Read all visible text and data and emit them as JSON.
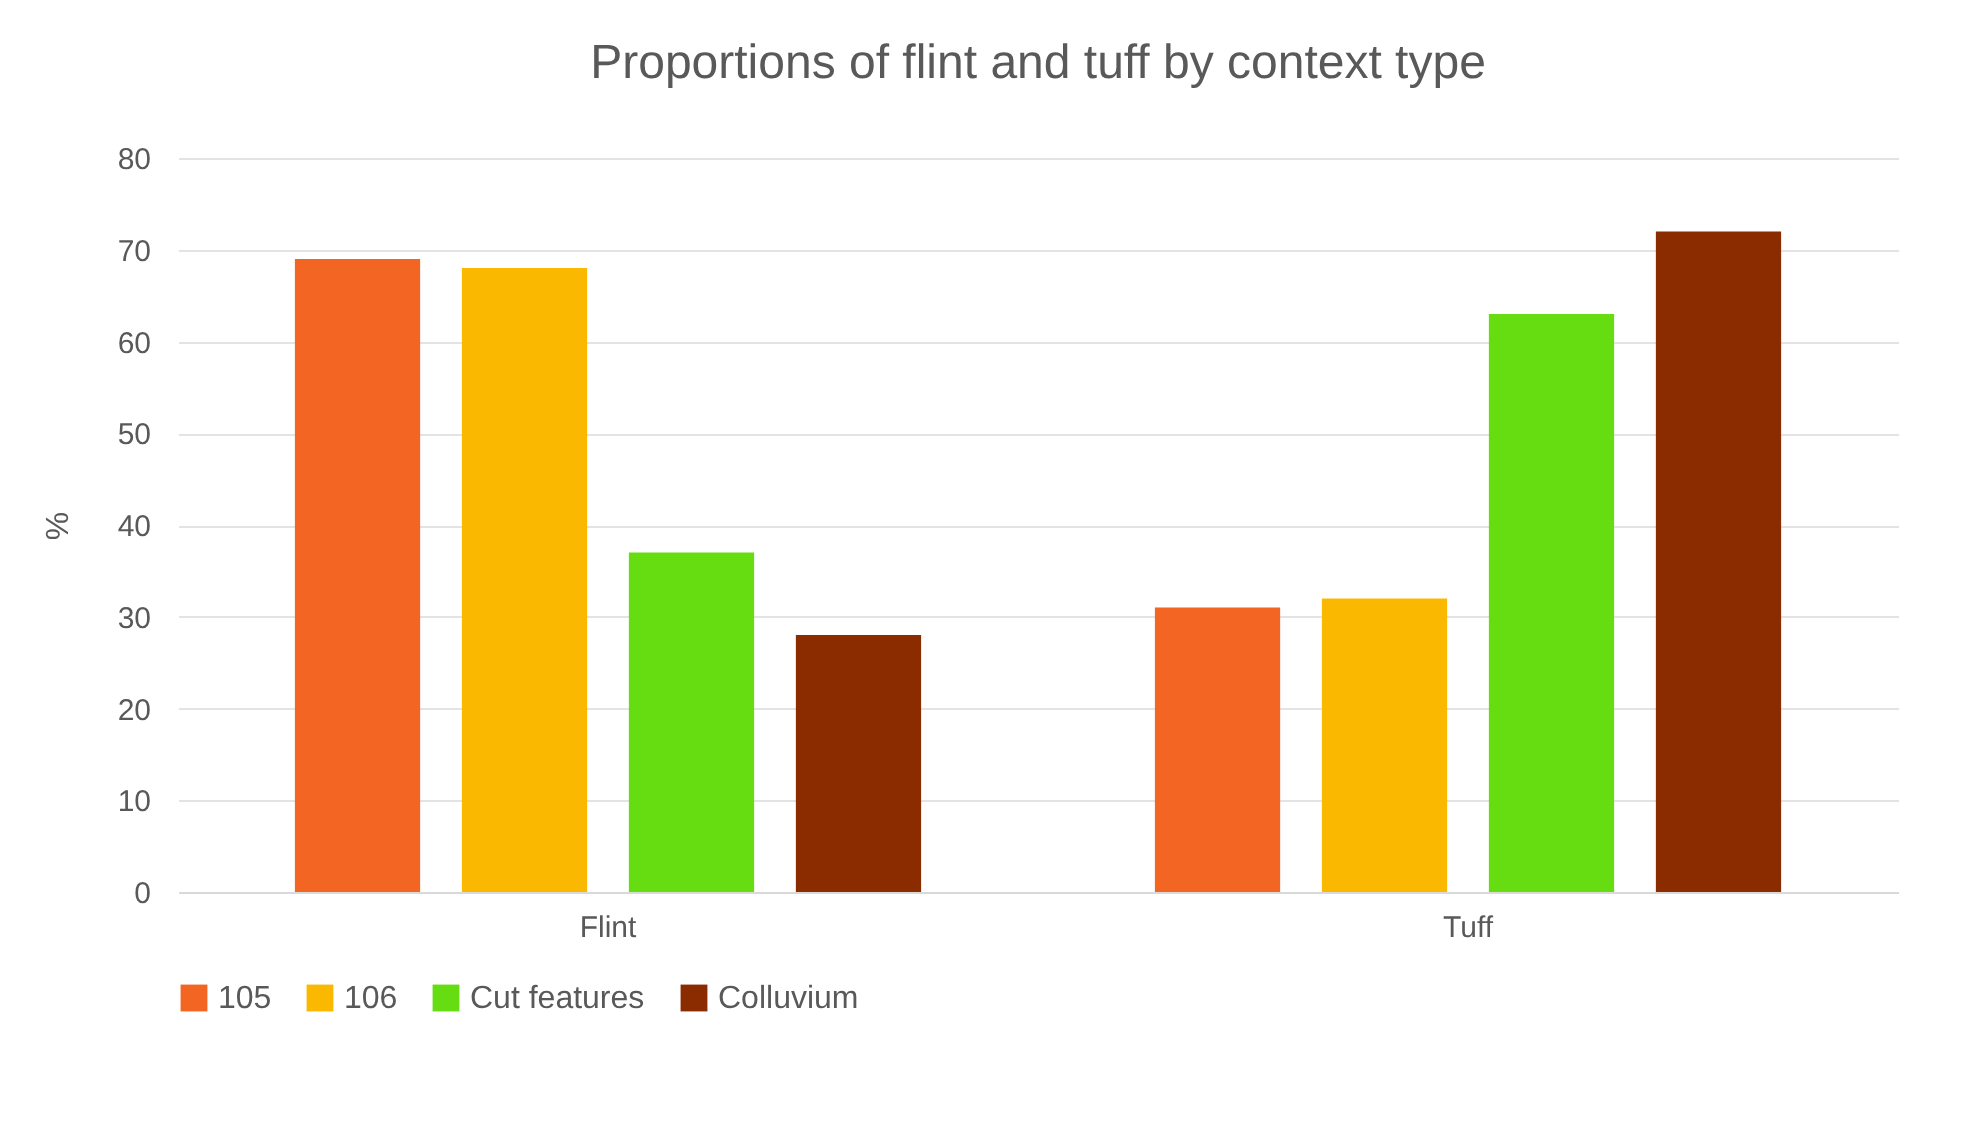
{
  "chart_data": {
    "type": "bar",
    "title": "Proportions of flint and tuff by context type",
    "ylabel": "%",
    "categories": [
      "Flint",
      "Tuff"
    ],
    "series": [
      {
        "name": "105",
        "color": "#f26522",
        "values": [
          69,
          31
        ]
      },
      {
        "name": "106",
        "color": "#fbb800",
        "values": [
          68,
          32
        ]
      },
      {
        "name": "Cut features",
        "color": "#66dd11",
        "values": [
          37,
          63
        ]
      },
      {
        "name": "Colluvium",
        "color": "#8b2c00",
        "values": [
          28,
          72
        ]
      }
    ],
    "ylim": [
      0,
      80
    ],
    "yticks": [
      0,
      10,
      20,
      30,
      40,
      50,
      60,
      70,
      80
    ],
    "grid": "y",
    "legend": "bottom"
  }
}
